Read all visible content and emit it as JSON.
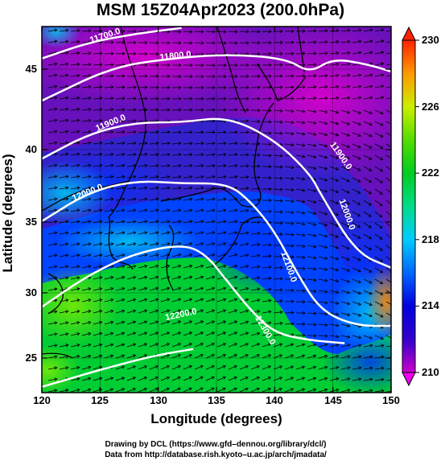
{
  "title": "MSM 15Z04Apr2023 (200.0hPa)",
  "xlabel": "Longitude (degrees)",
  "ylabel": "Latitude  (degrees)",
  "credit_line1": "Drawing by DCL (https://www.gfd–dennou.org/library/dcl/)",
  "credit_line2": "Data from http://database.rish.kyoto–u.ac.jp/arch/jmadata/",
  "chart_data": {
    "type": "map",
    "x_ticks": [
      "120",
      "125",
      "130",
      "135",
      "140",
      "145",
      "150"
    ],
    "y_ticks": [
      "25",
      "30",
      "35",
      "40",
      "45"
    ],
    "xlim": [
      120,
      150
    ],
    "ylim": [
      22.4,
      47.6
    ],
    "colorbar": {
      "min": 210,
      "max": 230,
      "ticks": [
        "210",
        "214",
        "218",
        "222",
        "226",
        "230"
      ]
    },
    "contour_labels": [
      "11700.0",
      "11800.0",
      "11900.0",
      "11900.0",
      "12000.0",
      "12000.0",
      "12100.0",
      "12200.0",
      "12300.0"
    ],
    "contours": [
      {
        "label": "11700.0",
        "points": [
          [
            120,
            45.4
          ],
          [
            124,
            46.5
          ],
          [
            128,
            47.1
          ],
          [
            132,
            47.5
          ]
        ]
      },
      {
        "label": "11800.0",
        "points": [
          [
            120,
            42.5
          ],
          [
            126,
            44.8
          ],
          [
            131,
            45.4
          ],
          [
            136,
            45.7
          ],
          [
            141,
            45.4
          ],
          [
            143,
            44.4
          ],
          [
            145,
            45.4
          ],
          [
            148,
            45.0
          ],
          [
            150,
            44.5
          ]
        ]
      },
      {
        "label": "11900.0",
        "points": [
          [
            120,
            38.5
          ],
          [
            124,
            40.2
          ],
          [
            128,
            41.0
          ],
          [
            132,
            41.0
          ],
          [
            136,
            41.4
          ],
          [
            140,
            39.8
          ],
          [
            143,
            37.5
          ],
          [
            144,
            36.0
          ],
          [
            147,
            32.0
          ],
          [
            150,
            31.0
          ]
        ]
      },
      {
        "label": "12000.0",
        "points": [
          [
            120,
            34.2
          ],
          [
            124,
            36.2
          ],
          [
            128,
            37.0
          ],
          [
            132,
            36.8
          ],
          [
            136,
            36.8
          ],
          [
            138,
            35.5
          ],
          [
            140,
            33.5
          ],
          [
            142,
            30.5
          ],
          [
            144,
            28.0
          ],
          [
            147,
            27.0
          ],
          [
            150,
            27.0
          ]
        ]
      },
      {
        "label": "12100.0",
        "points": [
          [
            120,
            28.3
          ],
          [
            124,
            30.5
          ],
          [
            128,
            32.0
          ],
          [
            132,
            32.6
          ],
          [
            134,
            32.0
          ],
          [
            136,
            30.0
          ],
          [
            138,
            28.0
          ],
          [
            140,
            26.5
          ],
          [
            143,
            26.0
          ],
          [
            146,
            25.8
          ]
        ]
      },
      {
        "label": "12200.0",
        "points": [
          [
            120,
            22.8
          ],
          [
            126,
            24.2
          ],
          [
            130,
            25.0
          ],
          [
            133,
            25.4
          ]
        ]
      }
    ]
  }
}
